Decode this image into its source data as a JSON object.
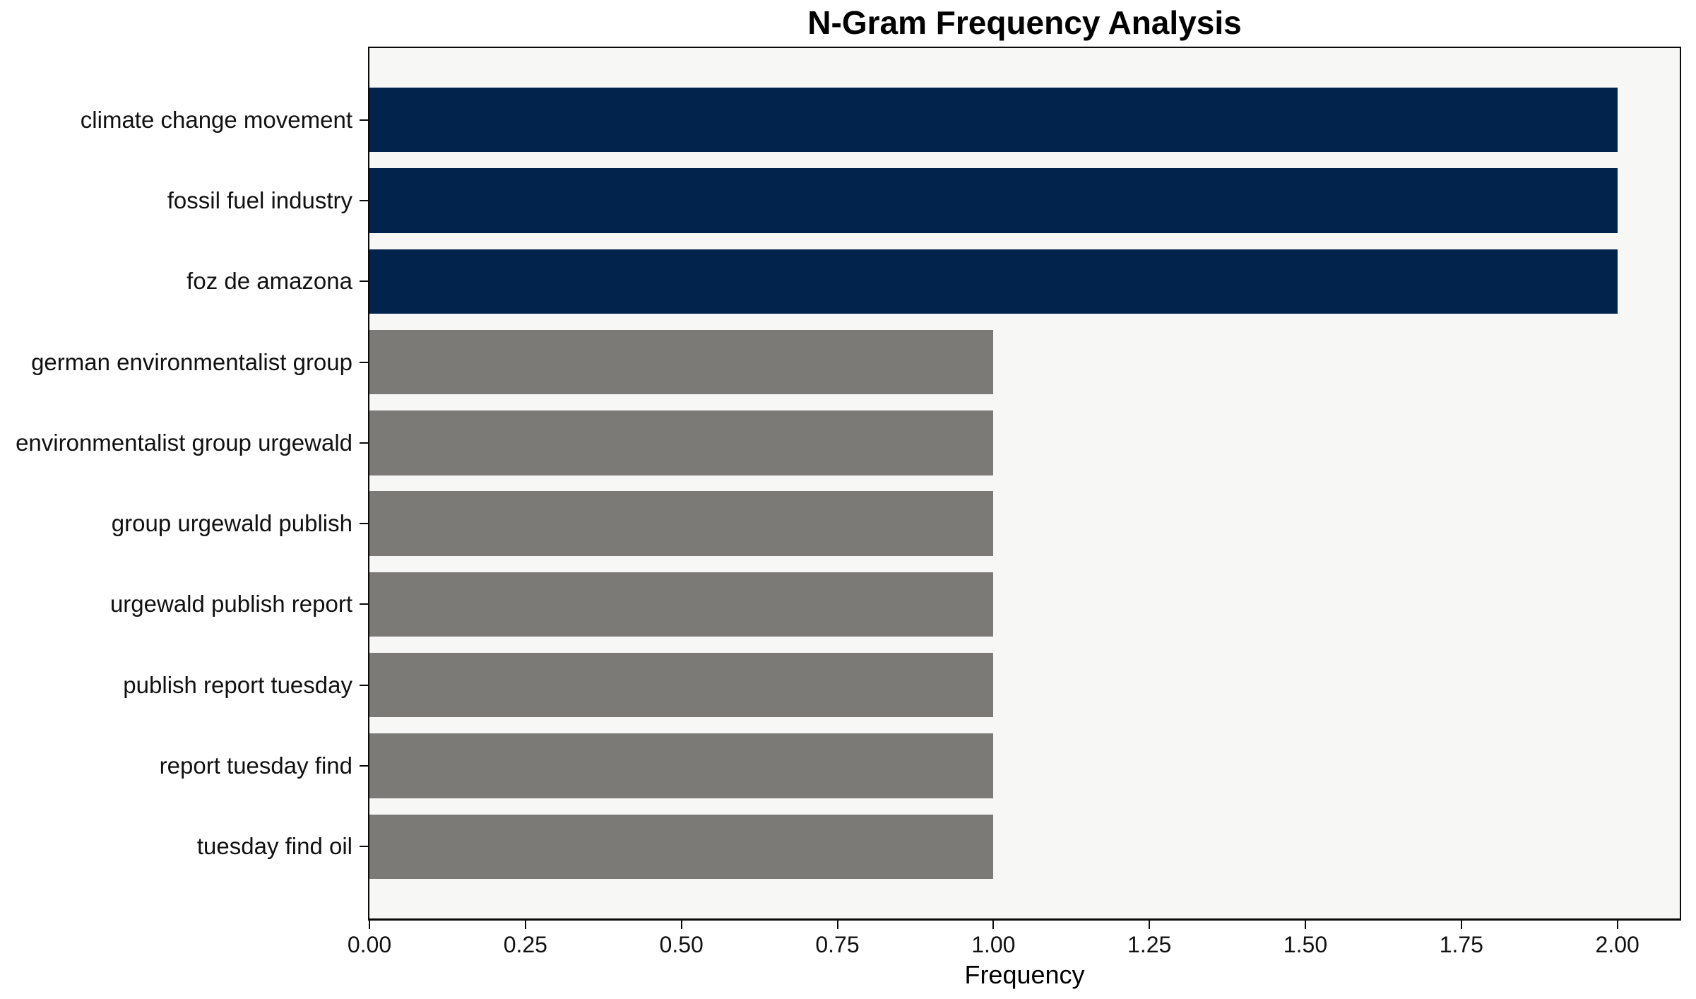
{
  "chart_data": {
    "type": "bar",
    "orientation": "horizontal",
    "title": "N-Gram Frequency Analysis",
    "xlabel": "Frequency",
    "ylabel": "",
    "categories": [
      "climate change movement",
      "fossil fuel industry",
      "foz de amazona",
      "german environmentalist group",
      "environmentalist group urgewald",
      "group urgewald publish",
      "urgewald publish report",
      "publish report tuesday",
      "report tuesday find",
      "tuesday find oil"
    ],
    "values": [
      2,
      2,
      2,
      1,
      1,
      1,
      1,
      1,
      1,
      1
    ],
    "bar_colors": [
      "#02234c",
      "#02234c",
      "#02234c",
      "#7b7a77",
      "#7b7a77",
      "#7b7a77",
      "#7b7a77",
      "#7b7a77",
      "#7b7a77",
      "#7b7a77"
    ],
    "xlim": [
      0,
      2.1
    ],
    "xticks": [
      {
        "value": 0.0,
        "label": "0.00"
      },
      {
        "value": 0.25,
        "label": "0.25"
      },
      {
        "value": 0.5,
        "label": "0.50"
      },
      {
        "value": 0.75,
        "label": "0.75"
      },
      {
        "value": 1.0,
        "label": "1.00"
      },
      {
        "value": 1.25,
        "label": "1.25"
      },
      {
        "value": 1.5,
        "label": "1.50"
      },
      {
        "value": 1.75,
        "label": "1.75"
      },
      {
        "value": 2.0,
        "label": "2.00"
      }
    ],
    "grid": false,
    "legend": null,
    "plot_background": "#f7f7f6",
    "page_background": "#ffffff",
    "highlight_color": "#02234c",
    "base_color": "#7b7a77"
  }
}
